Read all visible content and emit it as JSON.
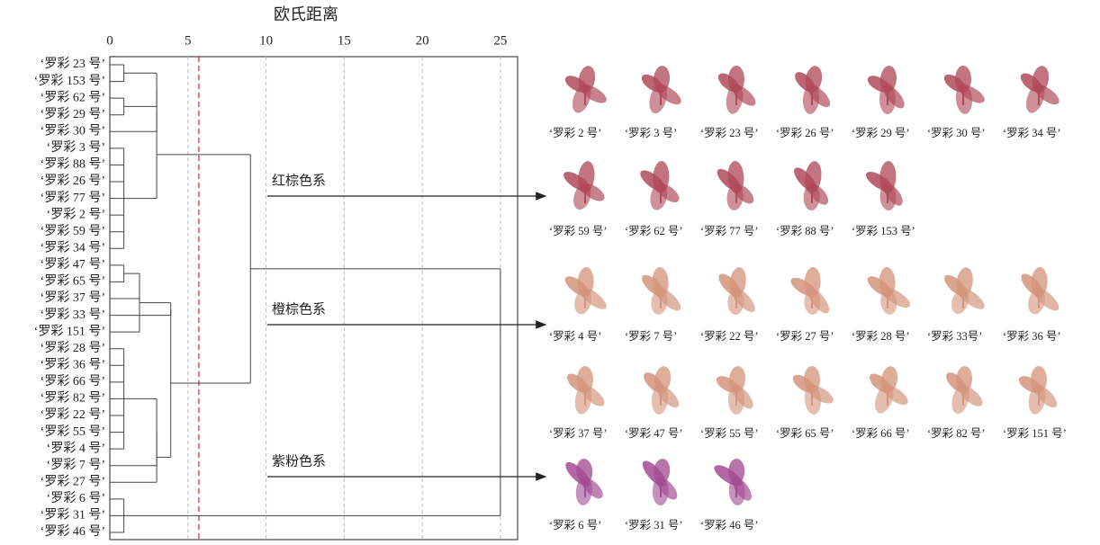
{
  "chart_data": {
    "type": "dendrogram",
    "title": "欧氏距离",
    "xlim": [
      0,
      26.1
    ],
    "xticks": [
      0,
      5,
      10,
      15,
      20,
      25
    ],
    "cutoff": 5.7,
    "leaves": [
      "‘罗彩 23 号’",
      "‘罗彩 153 号’",
      "‘罗彩 62 号’",
      "‘罗彩 29 号’",
      "‘罗彩 30 号’",
      "‘罗彩 3 号’",
      "‘罗彩 88 号’",
      "‘罗彩 26 号’",
      "‘罗彩 77 号’",
      "‘罗彩 2 号’",
      "‘罗彩 59 号’",
      "‘罗彩 34 号’",
      "‘罗彩 47 号’",
      "‘罗彩 65 号’",
      "‘罗彩 37 号’",
      "‘罗彩 33 号’",
      "‘罗彩 151 号’",
      "‘罗彩 28 号’",
      "‘罗彩 36 号’",
      "‘罗彩 66 号’",
      "‘罗彩 82 号’",
      "‘罗彩 22 号’",
      "‘罗彩 55 号’",
      "‘罗彩 4 号’",
      "‘罗彩 7 号’",
      "‘罗彩 27 号’",
      "‘罗彩 6 号’",
      "‘罗彩 31 号’",
      "‘罗彩 46 号’"
    ],
    "merges": [
      {
        "children": [
          0,
          1
        ],
        "height": 0.9
      },
      {
        "children": [
          2,
          3
        ],
        "height": 0.9
      },
      {
        "children": [
          29,
          30
        ],
        "height": 3.0
      },
      {
        "children": [
          5,
          6,
          7,
          8,
          9,
          10,
          11
        ],
        "height": 0.9
      },
      {
        "children": [
          31,
          4
        ],
        "height": 3.0
      },
      {
        "children": [
          33,
          32
        ],
        "height": 3.0
      },
      {
        "children": [
          12,
          13
        ],
        "height": 0.9
      },
      {
        "children": [
          35,
          14,
          16
        ],
        "height": 1.9
      },
      {
        "children": [
          36,
          15
        ],
        "height": 3.9
      },
      {
        "children": [
          17,
          18,
          19,
          20,
          21,
          22,
          23
        ],
        "height": 0.9
      },
      {
        "children": [
          38,
          24
        ],
        "height": 3.0
      },
      {
        "children": [
          39,
          25
        ],
        "height": 3.0
      },
      {
        "children": [
          37,
          40
        ],
        "height": 3.9
      },
      {
        "children": [
          34,
          41
        ],
        "height": 9.0
      },
      {
        "children": [
          26,
          27,
          28
        ],
        "height": 0.9
      },
      {
        "children": [
          42,
          43
        ],
        "height": 25.0
      }
    ],
    "panels": [
      {
        "name": "红棕色系",
        "color": "#b04a5a",
        "rows": [
          [
            "‘罗彩 2 号’",
            "‘罗彩 3 号’",
            "‘罗彩 23 号’",
            "‘罗彩 26 号’",
            "‘罗彩 29 号’",
            "‘罗彩 30 号’",
            "‘罗彩 34 号’"
          ],
          [
            "‘罗彩 59 号’",
            "‘罗彩 62 号’",
            "‘罗彩 77 号’",
            "‘罗彩 88 号’",
            "‘罗彩 153 号’"
          ]
        ]
      },
      {
        "name": "橙棕色系",
        "color": "#d4957c",
        "rows": [
          [
            "‘罗彩 4 号’",
            "‘罗彩 7 号’",
            "‘罗彩 22 号’",
            "‘罗彩 27 号’",
            "‘罗彩 28 号’",
            "‘罗彩 33号’",
            "‘罗彩 36 号’"
          ],
          [
            "‘罗彩 37 号’",
            "‘罗彩 47 号’",
            "‘罗彩 55 号’",
            "‘罗彩 65 号’",
            "‘罗彩 66 号’",
            "‘罗彩 82 号’",
            "‘罗彩 151 号’"
          ]
        ]
      },
      {
        "name": "紫粉色系",
        "color": "#a24c93",
        "rows": [
          [
            "‘罗彩 6 号’",
            "‘罗彩 31 号’",
            "‘罗彩 46 号’"
          ]
        ]
      }
    ]
  }
}
